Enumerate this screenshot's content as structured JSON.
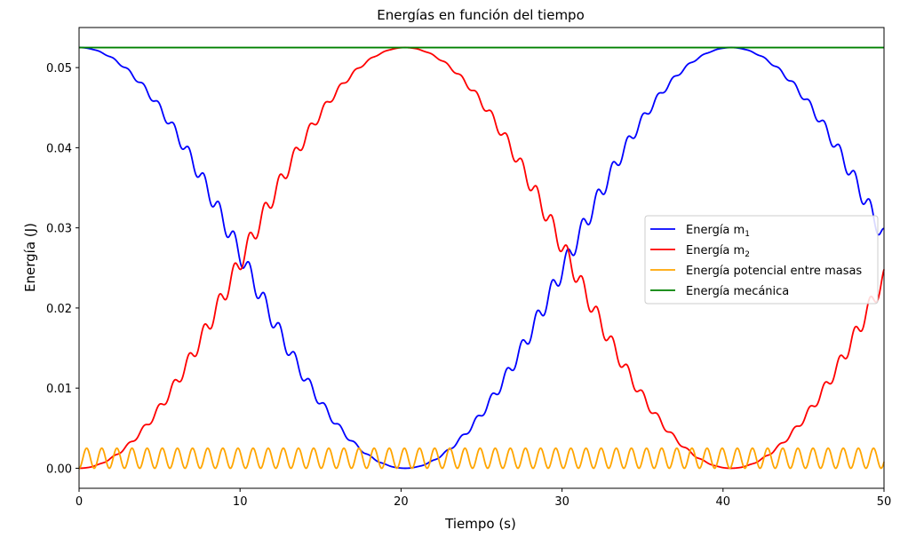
{
  "chart_data": {
    "type": "line",
    "title": "Energías en función del tiempo",
    "xlabel": "Tiempo (s)",
    "ylabel": "Energía (J)",
    "xlim": [
      0,
      50
    ],
    "ylim": [
      -0.0025,
      0.055
    ],
    "x_ticks": [
      0,
      10,
      20,
      30,
      40,
      50
    ],
    "x_tick_labels": [
      "0",
      "10",
      "20",
      "30",
      "40",
      "50"
    ],
    "y_ticks": [
      0.0,
      0.01,
      0.02,
      0.03,
      0.04,
      0.05
    ],
    "y_tick_labels": [
      "0.00",
      "0.01",
      "0.02",
      "0.03",
      "0.04",
      "0.05"
    ],
    "grid": false,
    "legend": {
      "placement": "center-right"
    },
    "series": [
      {
        "name": "Energía m",
        "subscript": "1",
        "color": "#0000ff",
        "model": {
          "total": 0.0525,
          "beat_period": 40.5,
          "fast_period": 0.94,
          "ripple_amplitude": 0.0012,
          "phase": 0
        }
      },
      {
        "name": "Energía m",
        "subscript": "2",
        "color": "#ff0000",
        "model": {
          "total": 0.0525,
          "beat_period": 40.5,
          "fast_period": 0.94,
          "ripple_amplitude": 0.0012,
          "phase": 3.14159
        }
      },
      {
        "name": "Energía potencial entre masas",
        "color": "#ffa500",
        "model": {
          "mean": 0.00125,
          "amplitude": 0.00125,
          "period": 0.94
        }
      },
      {
        "name": "Energía mecánica",
        "color": "#008000",
        "model": {
          "constant": 0.0525
        }
      }
    ]
  }
}
